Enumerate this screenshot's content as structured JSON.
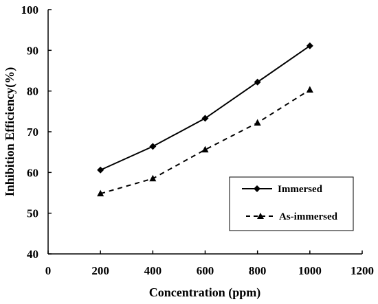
{
  "chart_data": {
    "type": "line",
    "xlabel": "Concentration (ppm)",
    "ylabel": "Inhibition Efficiency(%)",
    "xlim": [
      0,
      1200
    ],
    "ylim": [
      40,
      100
    ],
    "x_ticks": [
      "0",
      "200",
      "400",
      "600",
      "800",
      "1000",
      "1200"
    ],
    "y_ticks": [
      "40",
      "50",
      "60",
      "70",
      "80",
      "90",
      "100"
    ],
    "x": [
      200,
      400,
      600,
      800,
      1000
    ],
    "series": [
      {
        "name": "Immersed",
        "values": [
          60.6,
          66.4,
          73.3,
          82.2,
          91.1
        ],
        "marker": "diamond",
        "line": "solid",
        "color": "#000000"
      },
      {
        "name": "As-immersed",
        "values": [
          54.8,
          58.5,
          65.6,
          72.2,
          80.3
        ],
        "marker": "triangle",
        "line": "dashed",
        "color": "#000000"
      }
    ],
    "legend_position": "right",
    "grid": false
  }
}
